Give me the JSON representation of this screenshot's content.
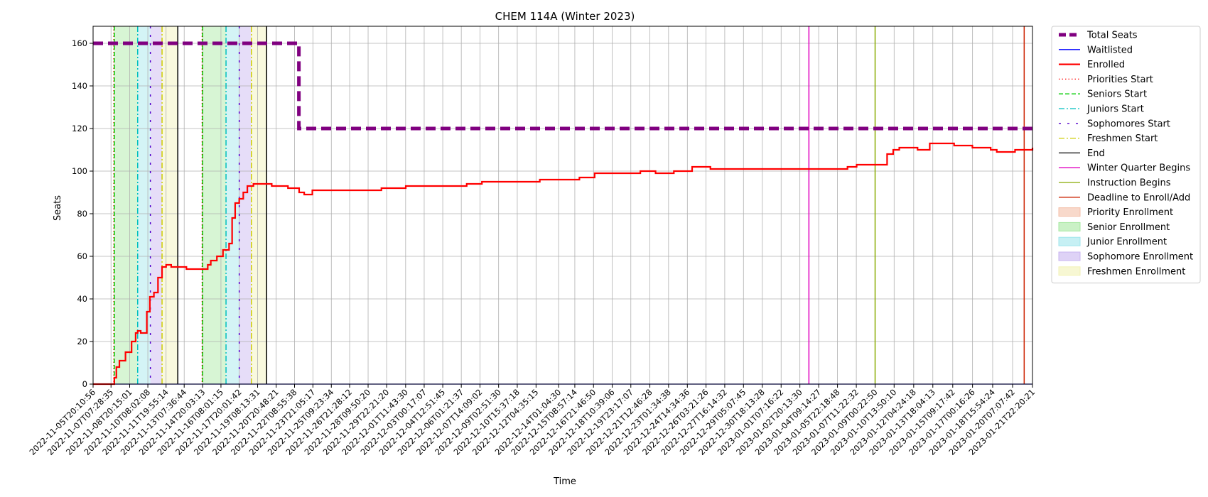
{
  "chart_data": {
    "type": "line",
    "title": "CHEM 114A (Winter 2023)",
    "xlabel": "Time",
    "ylabel": "Seats",
    "ylim": [
      0,
      168
    ],
    "yticks": [
      0,
      20,
      40,
      60,
      80,
      100,
      120,
      140,
      160
    ],
    "xlim": [
      "2022-11-05T20:10:56",
      "2023-01-21T22:20:21"
    ],
    "grid": true,
    "legend_position": "outside-right",
    "xtick_labels": [
      "2022-11-05T20:10:56",
      "2022-11-07T07:28:35",
      "2022-11-08T20:15:01",
      "2022-11-10T08:02:08",
      "2022-11-11T19:55:14",
      "2022-11-13T07:36:44",
      "2022-11-14T20:03:13",
      "2022-11-16T08:01:15",
      "2022-11-17T20:01:42",
      "2022-11-19T08:13:31",
      "2022-11-20T20:48:21",
      "2022-11-22T08:55:38",
      "2022-11-23T21:05:17",
      "2022-11-25T09:23:34",
      "2022-11-26T21:28:12",
      "2022-11-28T09:50:20",
      "2022-11-29T22:21:20",
      "2022-12-01T11:43:30",
      "2022-12-03T00:17:07",
      "2022-12-04T12:51:45",
      "2022-12-06T01:21:37",
      "2022-12-07T14:09:02",
      "2022-12-09T02:51:30",
      "2022-12-10T15:37:18",
      "2022-12-12T04:35:15",
      "2022-12-14T01:04:30",
      "2022-12-15T08:57:14",
      "2022-12-16T21:46:50",
      "2022-12-18T10:39:06",
      "2022-12-19T23:17:07",
      "2022-12-21T12:46:28",
      "2022-12-23T01:34:38",
      "2022-12-24T14:34:36",
      "2022-12-26T03:21:26",
      "2022-12-27T16:14:32",
      "2022-12-29T05:07:45",
      "2022-12-30T18:13:28",
      "2023-01-01T07:16:22",
      "2023-01-02T20:13:30",
      "2023-01-04T09:14:27",
      "2023-01-05T22:18:48",
      "2023-01-07T11:22:32",
      "2023-01-09T00:22:50",
      "2023-01-10T13:50:10",
      "2023-01-12T04:24:18",
      "2023-01-13T18:04:13",
      "2023-01-15T09:17:42",
      "2023-01-17T00:16:26",
      "2023-01-18T15:54:24",
      "2023-01-20T07:07:42",
      "2023-01-21T22:20:21"
    ],
    "series": [
      {
        "name": "Total Seats",
        "color": "#800080",
        "style": "dashed-thick",
        "x": [
          "2022-11-05T20:10:56",
          "2022-11-22T17:30:00",
          "2022-11-22T17:30:01",
          "2023-01-21T22:20:21"
        ],
        "y": [
          160,
          160,
          120,
          120
        ]
      },
      {
        "name": "Waitlisted",
        "color": "#0000ff",
        "style": "solid",
        "x": [
          "2022-11-05T20:10:56",
          "2023-01-21T22:20:21"
        ],
        "y": [
          0,
          0
        ]
      },
      {
        "name": "Enrolled",
        "color": "#ff0000",
        "style": "solid-thick",
        "x": [
          "2022-11-05T20:10:56",
          "2022-11-07T14:00:00",
          "2022-11-07T18:00:00",
          "2022-11-08T00:00:00",
          "2022-11-08T12:00:00",
          "2022-11-09T00:00:00",
          "2022-11-09T08:00:00",
          "2022-11-09T12:00:00",
          "2022-11-09T18:00:00",
          "2022-11-10T06:00:00",
          "2022-11-10T12:00:00",
          "2022-11-10T20:00:00",
          "2022-11-11T04:00:00",
          "2022-11-11T12:00:00",
          "2022-11-11T20:00:00",
          "2022-11-12T06:00:00",
          "2022-11-13T06:00:00",
          "2022-11-13T12:00:00",
          "2022-11-14T00:00:00",
          "2022-11-14T20:00:00",
          "2022-11-15T06:00:00",
          "2022-11-15T12:00:00",
          "2022-11-16T00:00:00",
          "2022-11-16T12:00:00",
          "2022-11-17T00:00:00",
          "2022-11-17T06:00:00",
          "2022-11-17T12:00:00",
          "2022-11-17T20:00:00",
          "2022-11-18T04:00:00",
          "2022-11-18T12:00:00",
          "2022-11-19T00:00:00",
          "2022-11-19T12:00:00",
          "2022-11-20T12:00:00",
          "2022-11-21T00:00:00",
          "2022-11-21T20:00:00",
          "2022-11-22T18:00:00",
          "2022-11-23T04:00:00",
          "2022-11-23T20:00:00",
          "2022-11-28T00:00:00",
          "2022-11-29T12:00:00",
          "2022-12-01T12:00:00",
          "2022-12-05T00:00:00",
          "2022-12-06T12:00:00",
          "2022-12-07T18:00:00",
          "2022-12-11T12:00:00",
          "2022-12-12T12:00:00",
          "2022-12-15T18:00:00",
          "2022-12-17T00:00:00",
          "2022-12-19T12:00:00",
          "2022-12-20T18:00:00",
          "2022-12-22T00:00:00",
          "2022-12-23T12:00:00",
          "2022-12-25T00:00:00",
          "2022-12-26T12:00:00",
          "2023-01-03T12:00:00",
          "2023-01-06T00:00:00",
          "2023-01-06T18:00:00",
          "2023-01-07T12:00:00",
          "2023-01-09T12:00:00",
          "2023-01-10T00:00:00",
          "2023-01-10T12:00:00",
          "2023-01-11T00:00:00",
          "2023-01-11T18:00:00",
          "2023-01-12T12:00:00",
          "2023-01-13T12:00:00",
          "2023-01-14T12:00:00",
          "2023-01-15T12:00:00",
          "2023-01-17T00:00:00",
          "2023-01-18T12:00:00",
          "2023-01-19T00:00:00",
          "2023-01-19T18:00:00",
          "2023-01-20T12:00:00",
          "2023-01-21T22:20:21"
        ],
        "y": [
          0,
          3,
          8,
          11,
          15,
          20,
          24,
          25,
          24,
          34,
          41,
          43,
          50,
          55,
          56,
          55,
          55,
          54,
          54,
          54,
          56,
          58,
          60,
          63,
          66,
          78,
          85,
          87,
          90,
          93,
          94,
          94,
          93,
          93,
          92,
          90,
          89,
          91,
          91,
          92,
          93,
          93,
          94,
          95,
          95,
          96,
          97,
          99,
          99,
          100,
          99,
          100,
          102,
          101,
          101,
          101,
          102,
          103,
          103,
          108,
          110,
          111,
          111,
          110,
          113,
          113,
          112,
          111,
          110,
          109,
          109,
          110,
          111
        ]
      }
    ],
    "vlines": [
      {
        "name": "Priorities Start",
        "color": "#ff0000",
        "style": "dotted",
        "x": [
          "2022-11-07T13:00:00",
          "2022-11-14T19:00:00"
        ]
      },
      {
        "name": "Seniors Start",
        "color": "#00cc00",
        "style": "dashed",
        "x": [
          "2022-11-07T14:00:00",
          "2022-11-14T20:03:13"
        ]
      },
      {
        "name": "Juniors Start",
        "color": "#00bfbf",
        "style": "dashdot",
        "x": [
          "2022-11-09T12:00:00",
          "2022-11-16T18:00:00"
        ]
      },
      {
        "name": "Sophomores Start",
        "color": "#5500cc",
        "style": "densedash",
        "x": [
          "2022-11-10T13:00:00",
          "2022-11-17T20:01:42"
        ]
      },
      {
        "name": "Freshmen Start",
        "color": "#cccc00",
        "style": "dashdot",
        "x": [
          "2022-11-11T12:00:00",
          "2022-11-18T20:00:00"
        ]
      },
      {
        "name": "End",
        "color": "#000000",
        "style": "solid",
        "x": [
          "2022-11-12T19:00:00",
          "2022-11-20T02:00:00"
        ]
      },
      {
        "name": "Winter Quarter Begins",
        "color": "#e000c0",
        "style": "solid",
        "x": [
          "2023-01-03T14:00:00"
        ]
      },
      {
        "name": "Instruction Begins",
        "color": "#88aa00",
        "style": "solid",
        "x": [
          "2023-01-09T00:22:50"
        ]
      },
      {
        "name": "Deadline to Enroll/Add",
        "color": "#cc2200",
        "style": "solid",
        "x": [
          "2023-01-21T06:00:00"
        ]
      }
    ],
    "spans": [
      {
        "name": "Priority Enrollment",
        "color": "#f4bfa8",
        "ranges": [
          [
            "2022-11-07T13:00:00",
            "2022-11-07T14:00:00"
          ],
          [
            "2022-11-14T19:00:00",
            "2022-11-14T20:03:13"
          ]
        ]
      },
      {
        "name": "Senior Enrollment",
        "color": "#a6e8a0",
        "ranges": [
          [
            "2022-11-07T14:00:00",
            "2022-11-09T12:00:00"
          ],
          [
            "2022-11-14T20:03:13",
            "2022-11-16T18:00:00"
          ]
        ]
      },
      {
        "name": "Junior Enrollment",
        "color": "#a0e6ec",
        "ranges": [
          [
            "2022-11-09T12:00:00",
            "2022-11-10T13:00:00"
          ],
          [
            "2022-11-16T18:00:00",
            "2022-11-17T20:01:42"
          ]
        ]
      },
      {
        "name": "Sophomore Enrollment",
        "color": "#c8b4f0",
        "ranges": [
          [
            "2022-11-10T13:00:00",
            "2022-11-11T12:00:00"
          ],
          [
            "2022-11-17T20:01:42",
            "2022-11-18T20:00:00"
          ]
        ]
      },
      {
        "name": "Freshmen Enrollment",
        "color": "#f2f2b6",
        "ranges": [
          [
            "2022-11-11T12:00:00",
            "2022-11-12T19:00:00"
          ],
          [
            "2022-11-18T20:00:00",
            "2022-11-20T02:00:00"
          ]
        ]
      }
    ],
    "legend": [
      {
        "label": "Total Seats",
        "kind": "line",
        "color": "#800080",
        "style": "dashed-thick"
      },
      {
        "label": "Waitlisted",
        "kind": "line",
        "color": "#0000ff",
        "style": "solid"
      },
      {
        "label": "Enrolled",
        "kind": "line",
        "color": "#ff0000",
        "style": "solid-thick"
      },
      {
        "label": "Priorities Start",
        "kind": "line",
        "color": "#ff0000",
        "style": "dotted"
      },
      {
        "label": "Seniors Start",
        "kind": "line",
        "color": "#00cc00",
        "style": "dashed"
      },
      {
        "label": "Juniors Start",
        "kind": "line",
        "color": "#00bfbf",
        "style": "dashdot"
      },
      {
        "label": "Sophomores Start",
        "kind": "line",
        "color": "#5500cc",
        "style": "densedash"
      },
      {
        "label": "Freshmen Start",
        "kind": "line",
        "color": "#cccc00",
        "style": "dashdot"
      },
      {
        "label": "End",
        "kind": "line",
        "color": "#000000",
        "style": "solid"
      },
      {
        "label": "Winter Quarter Begins",
        "kind": "line",
        "color": "#e000c0",
        "style": "solid"
      },
      {
        "label": "Instruction Begins",
        "kind": "line",
        "color": "#88aa00",
        "style": "solid"
      },
      {
        "label": "Deadline to Enroll/Add",
        "kind": "line",
        "color": "#cc2200",
        "style": "solid"
      },
      {
        "label": "Priority Enrollment",
        "kind": "patch",
        "color": "#f4bfa8"
      },
      {
        "label": "Senior Enrollment",
        "kind": "patch",
        "color": "#a6e8a0"
      },
      {
        "label": "Junior Enrollment",
        "kind": "patch",
        "color": "#a0e6ec"
      },
      {
        "label": "Sophomore Enrollment",
        "kind": "patch",
        "color": "#c8b4f0"
      },
      {
        "label": "Freshmen Enrollment",
        "kind": "patch",
        "color": "#f2f2b6"
      }
    ]
  }
}
